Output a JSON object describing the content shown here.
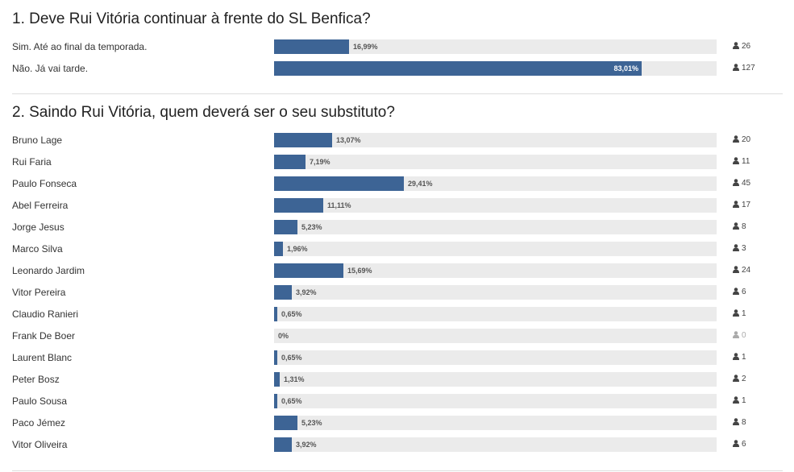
{
  "polls": [
    {
      "question": "1. Deve Rui Vitória continuar à frente do SL Benfica?",
      "options": [
        {
          "label": "Sim. Até ao final da temporada.",
          "percent": 16.99,
          "percent_label": "16,99%",
          "votes": "26"
        },
        {
          "label": "Não. Já vai tarde.",
          "percent": 83.01,
          "percent_label": "83,01%",
          "votes": "127"
        }
      ]
    },
    {
      "question": "2. Saindo Rui Vitória, quem deverá ser o seu substituto?",
      "options": [
        {
          "label": "Bruno Lage",
          "percent": 13.07,
          "percent_label": "13,07%",
          "votes": "20"
        },
        {
          "label": "Rui Faria",
          "percent": 7.19,
          "percent_label": "7,19%",
          "votes": "11"
        },
        {
          "label": "Paulo Fonseca",
          "percent": 29.41,
          "percent_label": "29,41%",
          "votes": "45"
        },
        {
          "label": "Abel Ferreira",
          "percent": 11.11,
          "percent_label": "11,11%",
          "votes": "17"
        },
        {
          "label": "Jorge Jesus",
          "percent": 5.23,
          "percent_label": "5,23%",
          "votes": "8"
        },
        {
          "label": "Marco Silva",
          "percent": 1.96,
          "percent_label": "1,96%",
          "votes": "3"
        },
        {
          "label": "Leonardo Jardim",
          "percent": 15.69,
          "percent_label": "15,69%",
          "votes": "24"
        },
        {
          "label": "Vitor Pereira",
          "percent": 3.92,
          "percent_label": "3,92%",
          "votes": "6"
        },
        {
          "label": "Claudio Ranieri",
          "percent": 0.65,
          "percent_label": "0,65%",
          "votes": "1"
        },
        {
          "label": "Frank De Boer",
          "percent": 0,
          "percent_label": "0%",
          "votes": "0"
        },
        {
          "label": "Laurent Blanc",
          "percent": 0.65,
          "percent_label": "0,65%",
          "votes": "1"
        },
        {
          "label": "Peter Bosz",
          "percent": 1.31,
          "percent_label": "1,31%",
          "votes": "2"
        },
        {
          "label": "Paulo Sousa",
          "percent": 0.65,
          "percent_label": "0,65%",
          "votes": "1"
        },
        {
          "label": "Paco Jémez",
          "percent": 5.23,
          "percent_label": "5,23%",
          "votes": "8"
        },
        {
          "label": "Vitor Oliveira",
          "percent": 3.92,
          "percent_label": "3,92%",
          "votes": "6"
        }
      ]
    }
  ],
  "icons": {
    "votes": "user-icon"
  },
  "colors": {
    "bar_fill": "#3d6495",
    "bar_track": "#ebebeb",
    "divider": "#dddddd"
  }
}
